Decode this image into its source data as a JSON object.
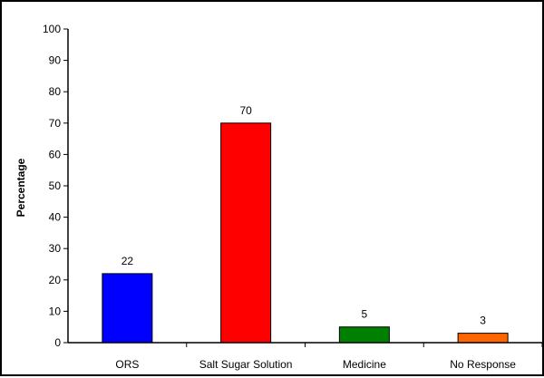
{
  "chart_data": {
    "type": "bar",
    "categories": [
      "ORS",
      "Salt Sugar Solution",
      "Medicine",
      "No Response"
    ],
    "values": [
      22,
      70,
      5,
      3
    ],
    "colors": [
      "#0000ff",
      "#ff0000",
      "#008000",
      "#ff6600"
    ],
    "title": "",
    "xlabel": "",
    "ylabel": "Percentage",
    "ylim": [
      0,
      100
    ],
    "yticks": [
      0,
      10,
      20,
      30,
      40,
      50,
      60,
      70,
      80,
      90,
      100
    ],
    "grid": false,
    "legend": "none"
  }
}
